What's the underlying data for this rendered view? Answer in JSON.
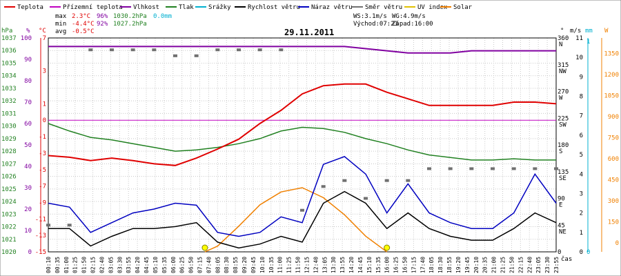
{
  "chart_data": {
    "type": "line",
    "title": "29.11.2011",
    "legend": [
      {
        "label": "Teplota",
        "color": "#e00000"
      },
      {
        "label": "Přízemní teplota",
        "color": "#c000c0"
      },
      {
        "label": "Vlhkost",
        "color": "#8000a0"
      },
      {
        "label": "Tlak",
        "color": "#208020"
      },
      {
        "label": "Srážky",
        "color": "#00b0d0"
      },
      {
        "label": "Rychlost větru",
        "color": "#000000"
      },
      {
        "label": "Náraz větru",
        "color": "#0000c0"
      },
      {
        "label": "Směr větru",
        "color": "#707070"
      },
      {
        "label": "UV index",
        "color": "#e0c000"
      },
      {
        "label": "Solar",
        "color": "#f08000"
      }
    ],
    "stats": {
      "max_label": "max",
      "min_label": "min",
      "avg_label": "avg",
      "temp_max": "2.3°C",
      "hum_max": "96%",
      "press_max": "1030.2hPa",
      "rain": "0.0mm",
      "temp_min": "-4.4°C",
      "hum_min": "92%",
      "press_min": "1027.2hPa",
      "temp_avg": "-0.5°C",
      "ws": "WS:3.1m/s",
      "wg": "WG:4.9m/s",
      "sunrise": "Východ:07:23",
      "sunset": "Západ:16:00"
    },
    "axes": {
      "hpa": {
        "unit": "hPa",
        "ticks": [
          "1037",
          "1036",
          "1035",
          "1034",
          "1033",
          "1032",
          "1031",
          "1030",
          "1029",
          "1028",
          "1027",
          "1026",
          "1025",
          "1024",
          "1023",
          "1022",
          "1021",
          "1020"
        ],
        "range": [
          1020,
          1037
        ]
      },
      "hum": {
        "unit": "%",
        "ticks": [
          "100",
          "90",
          "80",
          "70",
          "60",
          "50",
          "40",
          "30",
          "20",
          "10",
          "0"
        ],
        "range": [
          0,
          100
        ]
      },
      "temp": {
        "unit": "°C",
        "ticks": [
          "7",
          "3",
          "1",
          "0",
          "-1",
          "-3",
          "-5",
          "-7",
          "-9",
          "-11",
          "-13",
          "-15"
        ]
      },
      "dir": {
        "unit": "°",
        "ticks": [
          "360",
          "315",
          "270",
          "225",
          "180",
          "135",
          "90",
          "45",
          "0"
        ],
        "names": [
          "N",
          "NW",
          "W",
          "SW",
          "S",
          "SE",
          "E",
          "NE",
          ""
        ]
      },
      "ms": {
        "unit": "m/s",
        "ticks": [
          "11",
          "10",
          "9",
          "8",
          "7",
          "6",
          "5",
          "4",
          "3",
          "2",
          "1",
          "0"
        ],
        "range": [
          0,
          11
        ]
      },
      "mm": {
        "unit": "mm",
        "ticks": [
          "1",
          "0"
        ]
      },
      "w": {
        "unit": "W",
        "ticks": [
          "1500",
          "1350",
          "1200",
          "1050",
          "900",
          "750",
          "600",
          "450",
          "300",
          "150",
          "0"
        ],
        "range": [
          0,
          1500
        ]
      },
      "x_label": "čas",
      "x_ticks": [
        "00:10",
        "00:35",
        "01:00",
        "01:25",
        "01:50",
        "02:15",
        "02:40",
        "03:05",
        "03:30",
        "03:55",
        "04:20",
        "04:45",
        "05:10",
        "05:35",
        "06:00",
        "06:25",
        "06:50",
        "07:15",
        "07:40",
        "08:05",
        "08:30",
        "08:55",
        "09:20",
        "09:45",
        "10:10",
        "10:35",
        "11:00",
        "11:25",
        "11:50",
        "12:15",
        "12:40",
        "13:05",
        "13:30",
        "13:55",
        "14:20",
        "14:45",
        "15:10",
        "15:35",
        "16:00",
        "16:25",
        "16:50",
        "17:15",
        "17:40",
        "18:05",
        "18:30",
        "18:55",
        "19:20",
        "19:45",
        "20:10",
        "20:35",
        "21:00",
        "21:25",
        "21:50",
        "22:15",
        "22:40",
        "23:05",
        "23:30",
        "23:55"
      ]
    },
    "series": {
      "temperature": {
        "x": [
          0,
          1,
          2,
          3,
          4,
          5,
          6,
          7,
          8,
          9,
          10,
          11,
          12,
          13,
          14,
          15,
          16,
          17,
          18,
          19,
          20,
          21,
          22,
          23,
          24
        ],
        "y": [
          -3.3,
          -3.5,
          -3.9,
          -3.6,
          -3.9,
          -4.3,
          -4.5,
          -3.6,
          -2.5,
          -1.3,
          -0.2,
          0.6,
          1.6,
          2.1,
          2.2,
          2.2,
          1.7,
          1.3,
          0.9,
          0.9,
          0.9,
          0.9,
          1.1,
          1.1,
          1.0
        ]
      },
      "humidity": {
        "x": [
          0,
          1,
          2,
          3,
          4,
          5,
          6,
          7,
          8,
          9,
          10,
          11,
          12,
          13,
          14,
          15,
          16,
          17,
          18,
          19,
          20,
          21,
          22,
          23,
          24
        ],
        "y": [
          96,
          96,
          96,
          96,
          96,
          96,
          96,
          96,
          96,
          96,
          96,
          96,
          96,
          96,
          96,
          95,
          94,
          93,
          93,
          93,
          94,
          94,
          94,
          94,
          94
        ]
      },
      "pressure": {
        "x": [
          0,
          1,
          2,
          3,
          4,
          5,
          6,
          7,
          8,
          9,
          10,
          11,
          12,
          13,
          14,
          15,
          16,
          17,
          18,
          19,
          20,
          21,
          22,
          23,
          24
        ],
        "y": [
          1030.2,
          1029.6,
          1029.1,
          1028.9,
          1028.6,
          1028.3,
          1028.0,
          1028.1,
          1028.3,
          1028.6,
          1029.0,
          1029.6,
          1029.9,
          1029.8,
          1029.5,
          1029.0,
          1028.6,
          1028.1,
          1027.7,
          1027.5,
          1027.3,
          1027.3,
          1027.4,
          1027.3,
          1027.3
        ]
      },
      "wind_speed": {
        "x": [
          0,
          1,
          2,
          3,
          4,
          5,
          6,
          7,
          8,
          9,
          10,
          11,
          12,
          13,
          14,
          15,
          16,
          17,
          18,
          19,
          20,
          21,
          22,
          23,
          24
        ],
        "y": [
          1.2,
          1.2,
          0.3,
          0.8,
          1.2,
          1.2,
          1.3,
          1.5,
          0.5,
          0.2,
          0.4,
          0.8,
          0.5,
          2.5,
          3.1,
          2.5,
          1.2,
          2.0,
          1.2,
          0.8,
          0.6,
          0.6,
          1.2,
          2.0,
          1.5
        ]
      },
      "wind_gust": {
        "x": [
          0,
          1,
          2,
          3,
          4,
          5,
          6,
          7,
          8,
          9,
          10,
          11,
          12,
          13,
          14,
          15,
          16,
          17,
          18,
          19,
          20,
          21,
          22,
          23,
          24
        ],
        "y": [
          2.5,
          2.3,
          1.0,
          1.5,
          2.0,
          2.2,
          2.5,
          2.4,
          1.0,
          0.8,
          1.0,
          1.8,
          1.5,
          4.5,
          4.9,
          4.0,
          2.0,
          3.5,
          2.0,
          1.5,
          1.2,
          1.2,
          2.0,
          4.0,
          2.5
        ]
      },
      "wind_dir": {
        "x": [
          0,
          1,
          2,
          3,
          4,
          5,
          6,
          7,
          8,
          9,
          10,
          11,
          12,
          13,
          14,
          15,
          16,
          17,
          18,
          19,
          20,
          21,
          22,
          23,
          24
        ],
        "y": [
          45,
          45,
          340,
          340,
          340,
          340,
          330,
          330,
          340,
          340,
          340,
          340,
          70,
          110,
          120,
          90,
          120,
          120,
          140,
          140,
          140,
          140,
          140,
          140,
          140
        ]
      },
      "solar": {
        "x": [
          7.4,
          8,
          9,
          10,
          11,
          12,
          13,
          14,
          15,
          16
        ],
        "y": [
          0,
          40,
          180,
          330,
          420,
          450,
          380,
          260,
          110,
          0
        ]
      }
    }
  }
}
